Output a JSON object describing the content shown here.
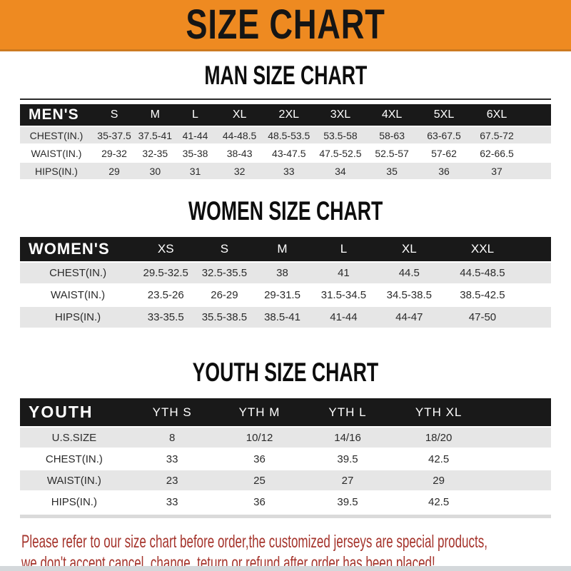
{
  "banner": {
    "title": "SIZE CHART"
  },
  "colors": {
    "banner_bg": "#EE8A21",
    "table_header_bg": "#191919",
    "row_alt_bg": "#E6E6E6",
    "disclaimer_red": "#A5342C"
  },
  "chart_data": [
    {
      "type": "table",
      "title": "MAN SIZE CHART",
      "columns": [
        "MEN'S",
        "S",
        "M",
        "L",
        "XL",
        "2XL",
        "3XL",
        "4XL",
        "5XL",
        "6XL"
      ],
      "rows": [
        [
          "CHEST(IN.)",
          "35-37.5",
          "37.5-41",
          "41-44",
          "44-48.5",
          "48.5-53.5",
          "53.5-58",
          "58-63",
          "63-67.5",
          "67.5-72"
        ],
        [
          "WAIST(IN.)",
          "29-32",
          "32-35",
          "35-38",
          "38-43",
          "43-47.5",
          "47.5-52.5",
          "52.5-57",
          "57-62",
          "62-66.5"
        ],
        [
          "HIPS(IN.)",
          "29",
          "30",
          "31",
          "32",
          "33",
          "34",
          "35",
          "36",
          "37"
        ]
      ]
    },
    {
      "type": "table",
      "title": "WOMEN SIZE CHART",
      "columns": [
        "WOMEN'S",
        "XS",
        "S",
        "M",
        "L",
        "XL",
        "XXL"
      ],
      "rows": [
        [
          "CHEST(IN.)",
          "29.5-32.5",
          "32.5-35.5",
          "38",
          "41",
          "44.5",
          "44.5-48.5"
        ],
        [
          "WAIST(IN.)",
          "23.5-26",
          "26-29",
          "29-31.5",
          "31.5-34.5",
          "34.5-38.5",
          "38.5-42.5"
        ],
        [
          "HIPS(IN.)",
          "33-35.5",
          "35.5-38.5",
          "38.5-41",
          "41-44",
          "44-47",
          "47-50"
        ]
      ]
    },
    {
      "type": "table",
      "title": "YOUTH SIZE CHART",
      "columns": [
        "YOUTH",
        "YTH S",
        "YTH M",
        "YTH L",
        "YTH XL"
      ],
      "rows": [
        [
          "U.S.SIZE",
          "8",
          "10/12",
          "14/16",
          "18/20"
        ],
        [
          "CHEST(IN.)",
          "33",
          "36",
          "39.5",
          "42.5"
        ],
        [
          "WAIST(IN.)",
          "23",
          "25",
          "27",
          "29"
        ],
        [
          "HIPS(IN.)",
          "33",
          "36",
          "39.5",
          "42.5"
        ]
      ]
    }
  ],
  "disclaimer": {
    "line1": "Please refer to our size chart before order,the customized jerseys are special products,",
    "line2": "we don't accept cancel, change, teturn or refund after order has been placed!"
  }
}
